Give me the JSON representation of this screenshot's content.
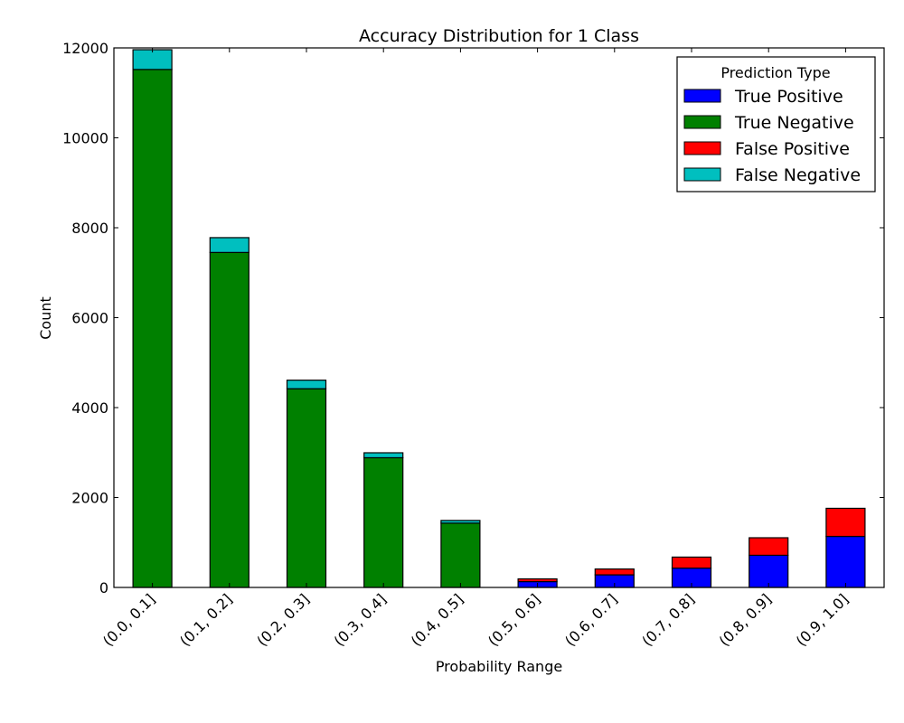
{
  "chart_data": {
    "type": "bar",
    "stacked": true,
    "title": "Accuracy Distribution for 1 Class",
    "xlabel": "Probability Range",
    "ylabel": "Count",
    "ylim": [
      0,
      12000
    ],
    "yticks": [
      0,
      2000,
      4000,
      6000,
      8000,
      10000,
      12000
    ],
    "grid": false,
    "legend_position": "upper right",
    "legend_title": "Prediction Type",
    "categories": [
      "(0.0, 0.1]",
      "(0.1, 0.2]",
      "(0.2, 0.3]",
      "(0.3, 0.4]",
      "(0.4, 0.5]",
      "(0.5, 0.6]",
      "(0.6, 0.7]",
      "(0.7, 0.8]",
      "(0.8, 0.9]",
      "(0.9, 1.0]"
    ],
    "series": [
      {
        "name": "True Positive",
        "color": "#0000ff",
        "values": [
          0,
          0,
          0,
          0,
          0,
          130,
          280,
          430,
          715,
          1135
        ]
      },
      {
        "name": "True Negative",
        "color": "#008000",
        "values": [
          11520,
          7450,
          4420,
          2885,
          1430,
          0,
          0,
          0,
          0,
          0
        ]
      },
      {
        "name": "False Positive",
        "color": "#ff0000",
        "values": [
          0,
          0,
          0,
          0,
          0,
          60,
          130,
          245,
          390,
          625
        ]
      },
      {
        "name": "False Negative",
        "color": "#00bfbf",
        "values": [
          440,
          330,
          190,
          110,
          60,
          0,
          0,
          0,
          0,
          0
        ]
      }
    ]
  }
}
